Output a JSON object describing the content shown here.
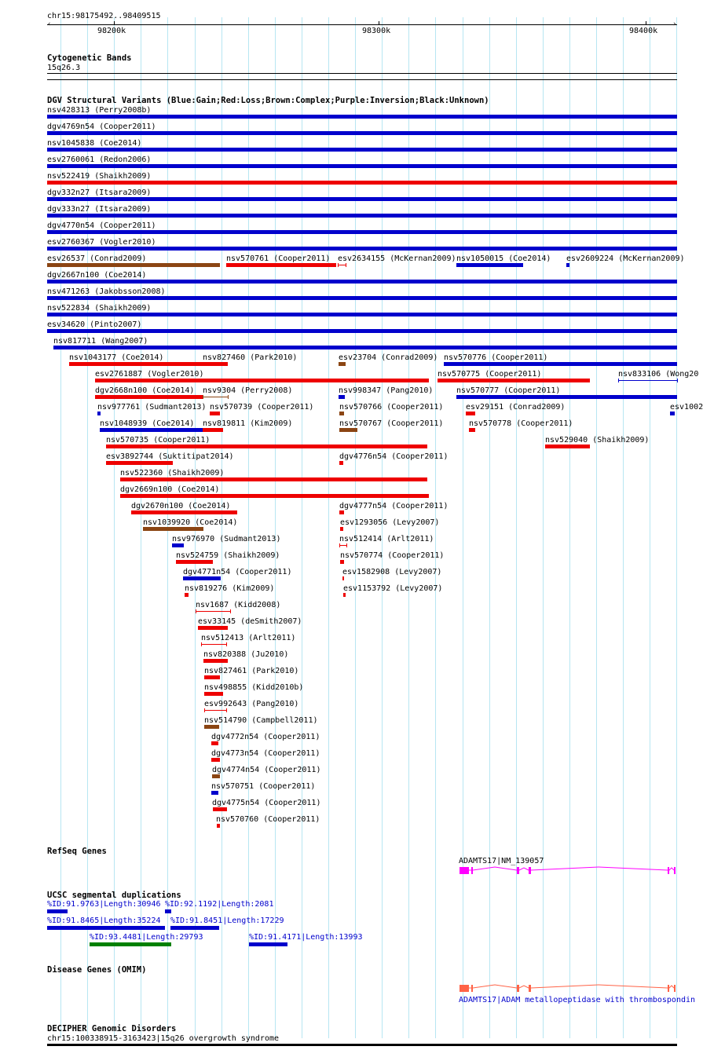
{
  "ruler": {
    "position": "chr15:98175492..98409515",
    "ticks": [
      "98200k",
      "98300k",
      "98400k"
    ]
  },
  "cytoband": {
    "title": "Cytogenetic Bands",
    "label": "15q26.3"
  },
  "dgv": {
    "title": "DGV Structural Variants (Blue:Gain;Red:Loss;Brown:Complex;Purple:Inversion;Black:Unknown)",
    "colors": {
      "gain": "#0000cc",
      "loss": "#ee0000",
      "complex": "#8b4513",
      "inversion": "#800080"
    },
    "variants": [
      {
        "label": "nsv428313 (Perry2008b)",
        "type": "gain"
      },
      {
        "label": "dgv4769n54 (Cooper2011)",
        "type": "gain"
      },
      {
        "label": "nsv1045838 (Coe2014)",
        "type": "gain"
      },
      {
        "label": "esv2760061 (Redon2006)",
        "type": "gain"
      },
      {
        "label": "nsv522419 (Shaikh2009)",
        "type": "loss"
      },
      {
        "label": "dgv332n27 (Itsara2009)",
        "type": "gain"
      },
      {
        "label": "dgv333n27 (Itsara2009)",
        "type": "gain"
      },
      {
        "label": "dgv4770n54 (Cooper2011)",
        "type": "gain"
      },
      {
        "label": "esv2760367 (Vogler2010)",
        "type": "gain"
      },
      {
        "label": "esv26537 (Conrad2009)",
        "type": "complex"
      },
      {
        "label": "nsv570761 (Cooper2011)",
        "type": "loss"
      },
      {
        "label": "esv2634155 (McKernan2009)",
        "type": "loss"
      },
      {
        "label": "nsv1050015 (Coe2014)",
        "type": "gain"
      },
      {
        "label": "esv2609224 (McKernan2009)",
        "type": "gain"
      },
      {
        "label": "dgv2667n100 (Coe2014)",
        "type": "gain"
      },
      {
        "label": "nsv471263 (Jakobsson2008)",
        "type": "gain"
      },
      {
        "label": "nsv522834 (Shaikh2009)",
        "type": "gain"
      },
      {
        "label": "esv34620 (Pinto2007)",
        "type": "gain"
      },
      {
        "label": "nsv817711 (Wang2007)",
        "type": "gain"
      },
      {
        "label": "nsv1043177 (Coe2014)",
        "type": "loss"
      },
      {
        "label": "nsv827460 (Park2010)",
        "type": "loss"
      },
      {
        "label": "esv23704 (Conrad2009)",
        "type": "complex"
      },
      {
        "label": "nsv570776 (Cooper2011)",
        "type": "gain"
      },
      {
        "label": "esv2761887 (Vogler2010)",
        "type": "loss"
      },
      {
        "label": "nsv570775 (Cooper2011)",
        "type": "loss"
      },
      {
        "label": "nsv833106 (Wong20",
        "type": "gain"
      },
      {
        "label": "dgv2668n100 (Coe2014)",
        "type": "loss"
      },
      {
        "label": "nsv9304 (Perry2008)",
        "type": "complex"
      },
      {
        "label": "nsv998347 (Pang2010)",
        "type": "gain"
      },
      {
        "label": "nsv570777 (Cooper2011)",
        "type": "gain"
      },
      {
        "label": "nsv977761 (Sudmant2013)",
        "type": "gain"
      },
      {
        "label": "nsv570739 (Cooper2011)",
        "type": "loss"
      },
      {
        "label": "nsv570766 (Cooper2011)",
        "type": "complex"
      },
      {
        "label": "esv29151 (Conrad2009)",
        "type": "loss"
      },
      {
        "label": "esv1002",
        "type": "gain"
      },
      {
        "label": "nsv1048939 (Coe2014)",
        "type": "gain"
      },
      {
        "label": "nsv819811 (Kim2009)",
        "type": "loss"
      },
      {
        "label": "nsv570767 (Cooper2011)",
        "type": "complex"
      },
      {
        "label": "nsv570778 (Cooper2011)",
        "type": "loss"
      },
      {
        "label": "nsv570735 (Cooper2011)",
        "type": "loss"
      },
      {
        "label": "nsv529040 (Shaikh2009)",
        "type": "loss"
      },
      {
        "label": "esv3892744 (Suktitipat2014)",
        "type": "loss"
      },
      {
        "label": "dgv4776n54 (Cooper2011)",
        "type": "loss"
      },
      {
        "label": "nsv522360 (Shaikh2009)",
        "type": "loss"
      },
      {
        "label": "dgv2669n100 (Coe2014)",
        "type": "loss"
      },
      {
        "label": "dgv2670n100 (Coe2014)",
        "type": "loss"
      },
      {
        "label": "dgv4777n54 (Cooper2011)",
        "type": "loss"
      },
      {
        "label": "nsv1039920 (Coe2014)",
        "type": "complex"
      },
      {
        "label": "esv1293056 (Levy2007)",
        "type": "loss"
      },
      {
        "label": "nsv976970 (Sudmant2013)",
        "type": "gain"
      },
      {
        "label": "nsv512414 (Arlt2011)",
        "type": "loss"
      },
      {
        "label": "nsv524759 (Shaikh2009)",
        "type": "loss"
      },
      {
        "label": "nsv570774 (Cooper2011)",
        "type": "loss"
      },
      {
        "label": "dgv4771n54 (Cooper2011)",
        "type": "gain"
      },
      {
        "label": "esv1582908 (Levy2007)",
        "type": "loss"
      },
      {
        "label": "nsv819276 (Kim2009)",
        "type": "loss"
      },
      {
        "label": "esv1153792 (Levy2007)",
        "type": "loss"
      },
      {
        "label": "nsv1687 (Kidd2008)",
        "type": "loss"
      },
      {
        "label": "esv33145 (deSmith2007)",
        "type": "loss"
      },
      {
        "label": "nsv512413 (Arlt2011)",
        "type": "loss"
      },
      {
        "label": "nsv820388 (Ju2010)",
        "type": "loss"
      },
      {
        "label": "nsv827461 (Park2010)",
        "type": "loss"
      },
      {
        "label": "nsv498855 (Kidd2010b)",
        "type": "loss"
      },
      {
        "label": "esv992643 (Pang2010)",
        "type": "loss"
      },
      {
        "label": "nsv514790 (Campbell2011)",
        "type": "complex"
      },
      {
        "label": "dgv4772n54 (Cooper2011)",
        "type": "loss"
      },
      {
        "label": "dgv4773n54 (Cooper2011)",
        "type": "loss"
      },
      {
        "label": "dgv4774n54 (Cooper2011)",
        "type": "complex"
      },
      {
        "label": "nsv570751 (Cooper2011)",
        "type": "gain"
      },
      {
        "label": "dgv4775n54 (Cooper2011)",
        "type": "loss"
      },
      {
        "label": "nsv570760 (Cooper2011)",
        "type": "loss"
      }
    ]
  },
  "refseq": {
    "title": "RefSeq Genes",
    "gene_label": "ADAMTS17|NM_139057",
    "color": "#ff00ff"
  },
  "segdup": {
    "title": "UCSC segmental duplications",
    "items": [
      {
        "label": "%ID:91.9763|Length:30946",
        "color": "#0000cc"
      },
      {
        "label": "%ID:92.1192|Length:2081",
        "color": "#0000cc"
      },
      {
        "label": "%ID:91.8465|Length:35224",
        "color": "#0000cc"
      },
      {
        "label": "%ID:91.8451|Length:17229",
        "color": "#0000cc"
      },
      {
        "label": "%ID:93.4481|Length:29793",
        "color": "#008000"
      },
      {
        "label": "%ID:91.4171|Length:13993",
        "color": "#0000cc"
      }
    ]
  },
  "omim": {
    "title": "Disease Genes (OMIM)",
    "gene_label": "ADAMTS17|ADAM metallopeptidase with thrombospondin",
    "color": "#ff6347"
  },
  "decipher": {
    "title": "DECIPHER Genomic Disorders",
    "label": "chr15:100338915-3163423|15q26 overgrowth syndrome"
  }
}
